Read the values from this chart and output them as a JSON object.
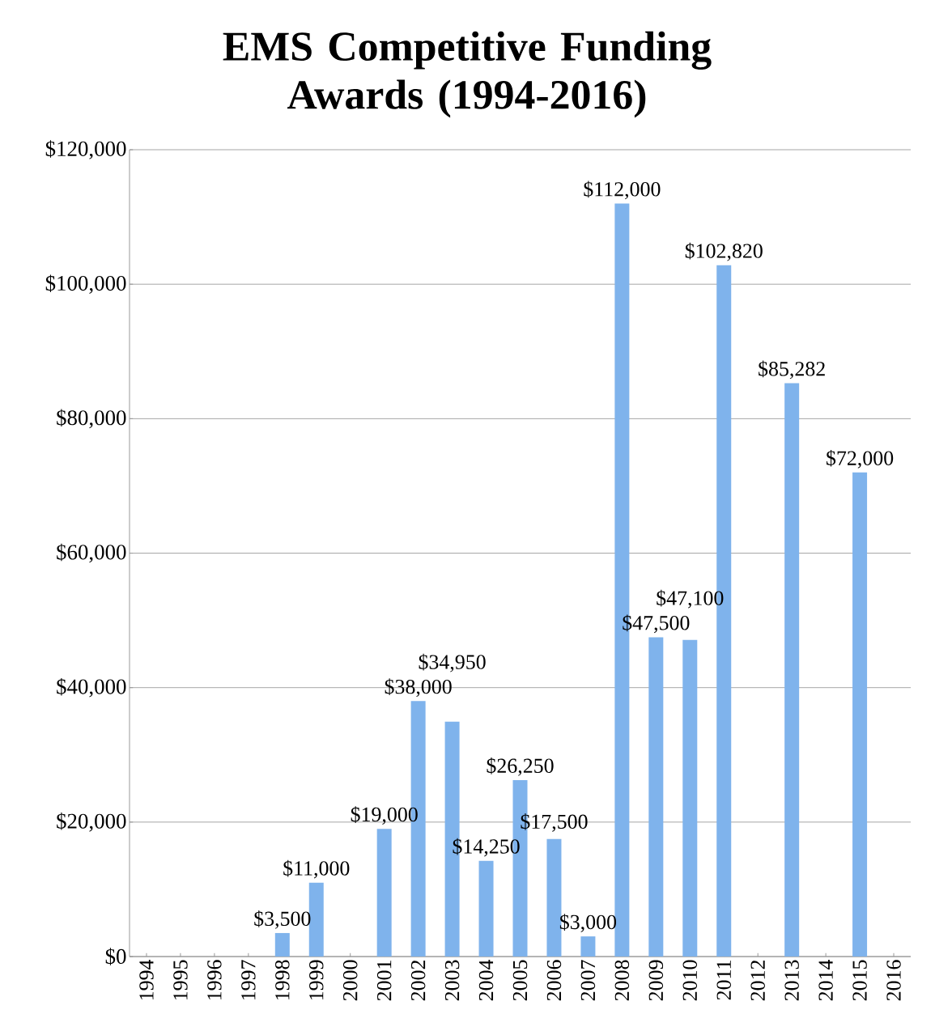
{
  "chart_data": {
    "type": "bar",
    "title": "EMS Competitive Funding Awards (1994-2016)",
    "categories": [
      "1994",
      "1995",
      "1996",
      "1997",
      "1998",
      "1999",
      "2000",
      "2001",
      "2002",
      "2003",
      "2004",
      "2005",
      "2006",
      "2007",
      "2008",
      "2009",
      "2010",
      "2011",
      "2012",
      "2013",
      "2014",
      "2015",
      "2016"
    ],
    "values": [
      null,
      null,
      null,
      null,
      3500,
      11000,
      null,
      19000,
      38000,
      34950,
      14250,
      26250,
      17500,
      3000,
      112000,
      47500,
      47100,
      102820,
      null,
      85282,
      null,
      72000,
      null
    ],
    "value_labels": [
      null,
      null,
      null,
      null,
      "$3,500",
      "$11,000",
      null,
      "$19,000",
      "$38,000",
      "$34,950",
      "$14,250",
      "$26,250",
      "$17,500",
      "$3,000",
      "$112,000",
      "$47,500",
      "$47,100",
      "$102,820",
      null,
      "$85,282",
      null,
      "$72,000",
      null
    ],
    "color": "#7fb3ec",
    "ylim": [
      0,
      120000
    ],
    "yticks": [
      {
        "value": 0,
        "label": "$0"
      },
      {
        "value": 20000,
        "label": "$20,000"
      },
      {
        "value": 40000,
        "label": "$40,000"
      },
      {
        "value": 60000,
        "label": "$60,000"
      },
      {
        "value": 80000,
        "label": "$80,000"
      },
      {
        "value": 100000,
        "label": "$100,000"
      },
      {
        "value": 120000,
        "label": "$120,000"
      }
    ],
    "grid": "y"
  }
}
